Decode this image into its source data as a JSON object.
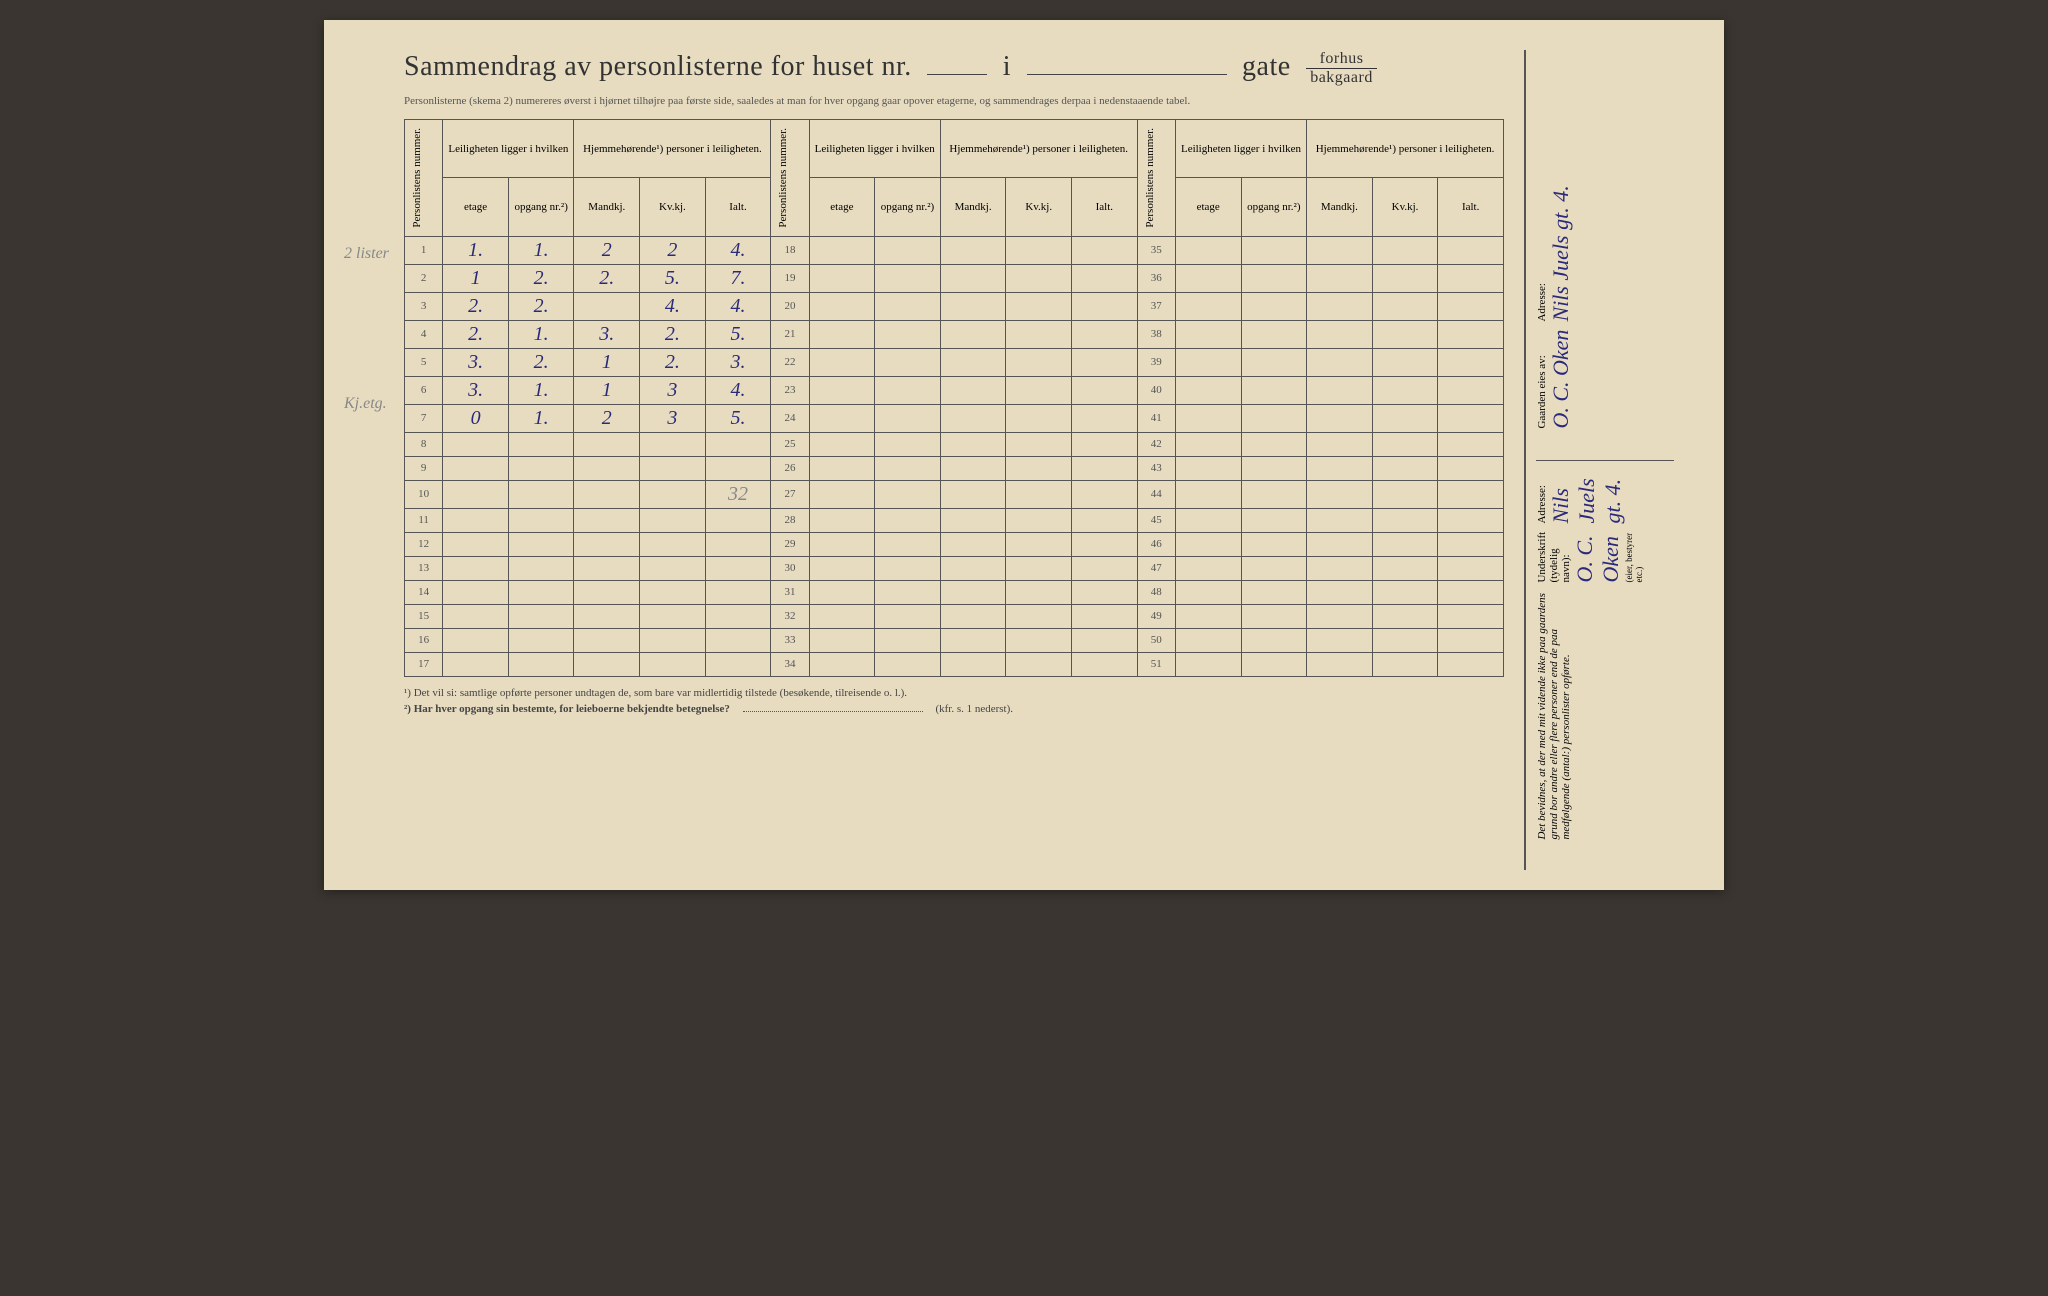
{
  "title": {
    "main": "Sammendrag av personlisterne for huset nr.",
    "mid": "i",
    "end": "gate",
    "frac_top": "forhus",
    "frac_bot": "bakgaard"
  },
  "subtitle": "Personlisterne (skema 2) numereres øverst i hjørnet tilhøjre paa første side, saaledes at man for hver opgang gaar opover etagerne, og sammendrages derpaa i nedenstaaende tabel.",
  "headers": {
    "pers_num": "Personlistens nummer.",
    "leil": "Leiligheten ligger i hvilken",
    "hjemme": "Hjemmehørende¹) personer i leiligheten.",
    "etage": "etage",
    "opgang": "opgang nr.²)",
    "mandkj": "Mandkj.",
    "kvkj": "Kv.kj.",
    "ialt": "Ialt."
  },
  "rows": [
    {
      "n": "1",
      "etage": "1.",
      "opg": "1.",
      "m": "2",
      "k": "2",
      "t": "4."
    },
    {
      "n": "2",
      "etage": "1",
      "opg": "2.",
      "m": "2.",
      "k": "5.",
      "t": "7."
    },
    {
      "n": "3",
      "etage": "2.",
      "opg": "2.",
      "m": "",
      "k": "4.",
      "t": "4."
    },
    {
      "n": "4",
      "etage": "2.",
      "opg": "1.",
      "m": "3.",
      "k": "2.",
      "t": "5."
    },
    {
      "n": "5",
      "etage": "3.",
      "opg": "2.",
      "m": "1",
      "k": "2.",
      "t": "3."
    },
    {
      "n": "6",
      "etage": "3.",
      "opg": "1.",
      "m": "1",
      "k": "3",
      "t": "4."
    },
    {
      "n": "7",
      "etage": "0",
      "opg": "1.",
      "m": "2",
      "k": "3",
      "t": "5."
    },
    {
      "n": "8",
      "etage": "",
      "opg": "",
      "m": "",
      "k": "",
      "t": ""
    },
    {
      "n": "9",
      "etage": "",
      "opg": "",
      "m": "",
      "k": "",
      "t": ""
    },
    {
      "n": "10",
      "etage": "",
      "opg": "",
      "m": "",
      "k": "",
      "t": "32"
    },
    {
      "n": "11"
    },
    {
      "n": "12"
    },
    {
      "n": "13"
    },
    {
      "n": "14"
    },
    {
      "n": "15"
    },
    {
      "n": "16"
    },
    {
      "n": "17"
    }
  ],
  "col2_nums": [
    "18",
    "19",
    "20",
    "21",
    "22",
    "23",
    "24",
    "25",
    "26",
    "27",
    "28",
    "29",
    "30",
    "31",
    "32",
    "33",
    "34"
  ],
  "col3_nums": [
    "35",
    "36",
    "37",
    "38",
    "39",
    "40",
    "41",
    "42",
    "43",
    "44",
    "45",
    "46",
    "47",
    "48",
    "49",
    "50",
    "51"
  ],
  "margin_notes": {
    "r2": "2 lister",
    "r7": "Kj.etg."
  },
  "footnotes": {
    "f1": "¹) Det vil si: samtlige opførte personer undtagen de, som bare var midlertidig tilstede (besøkende, tilreisende o. l.).",
    "f2": "²) Har hver opgang sin bestemte, for leieboerne bekjendte betegnelse?",
    "f2_ref": "(kfr. s. 1 nederst)."
  },
  "sidebar": {
    "bevidnes": "Det bevidnes, at der med mit vidende ikke paa gaardens grund bor andre eller flere personer end de paa medfølgende (antal:) personlister opførte.",
    "underskrift": "Underskrift (tydelig navn):",
    "eier_note": "(eier, bestyrer etc.)",
    "adresse": "Adresse:",
    "gaarden": "Gaarden eies av:",
    "sig1": "O. C. Oken",
    "sig2": "Nils Juels gt. 4.",
    "sig3": "O. C. Oken",
    "sig4": "Nils Juels gt. 4."
  }
}
